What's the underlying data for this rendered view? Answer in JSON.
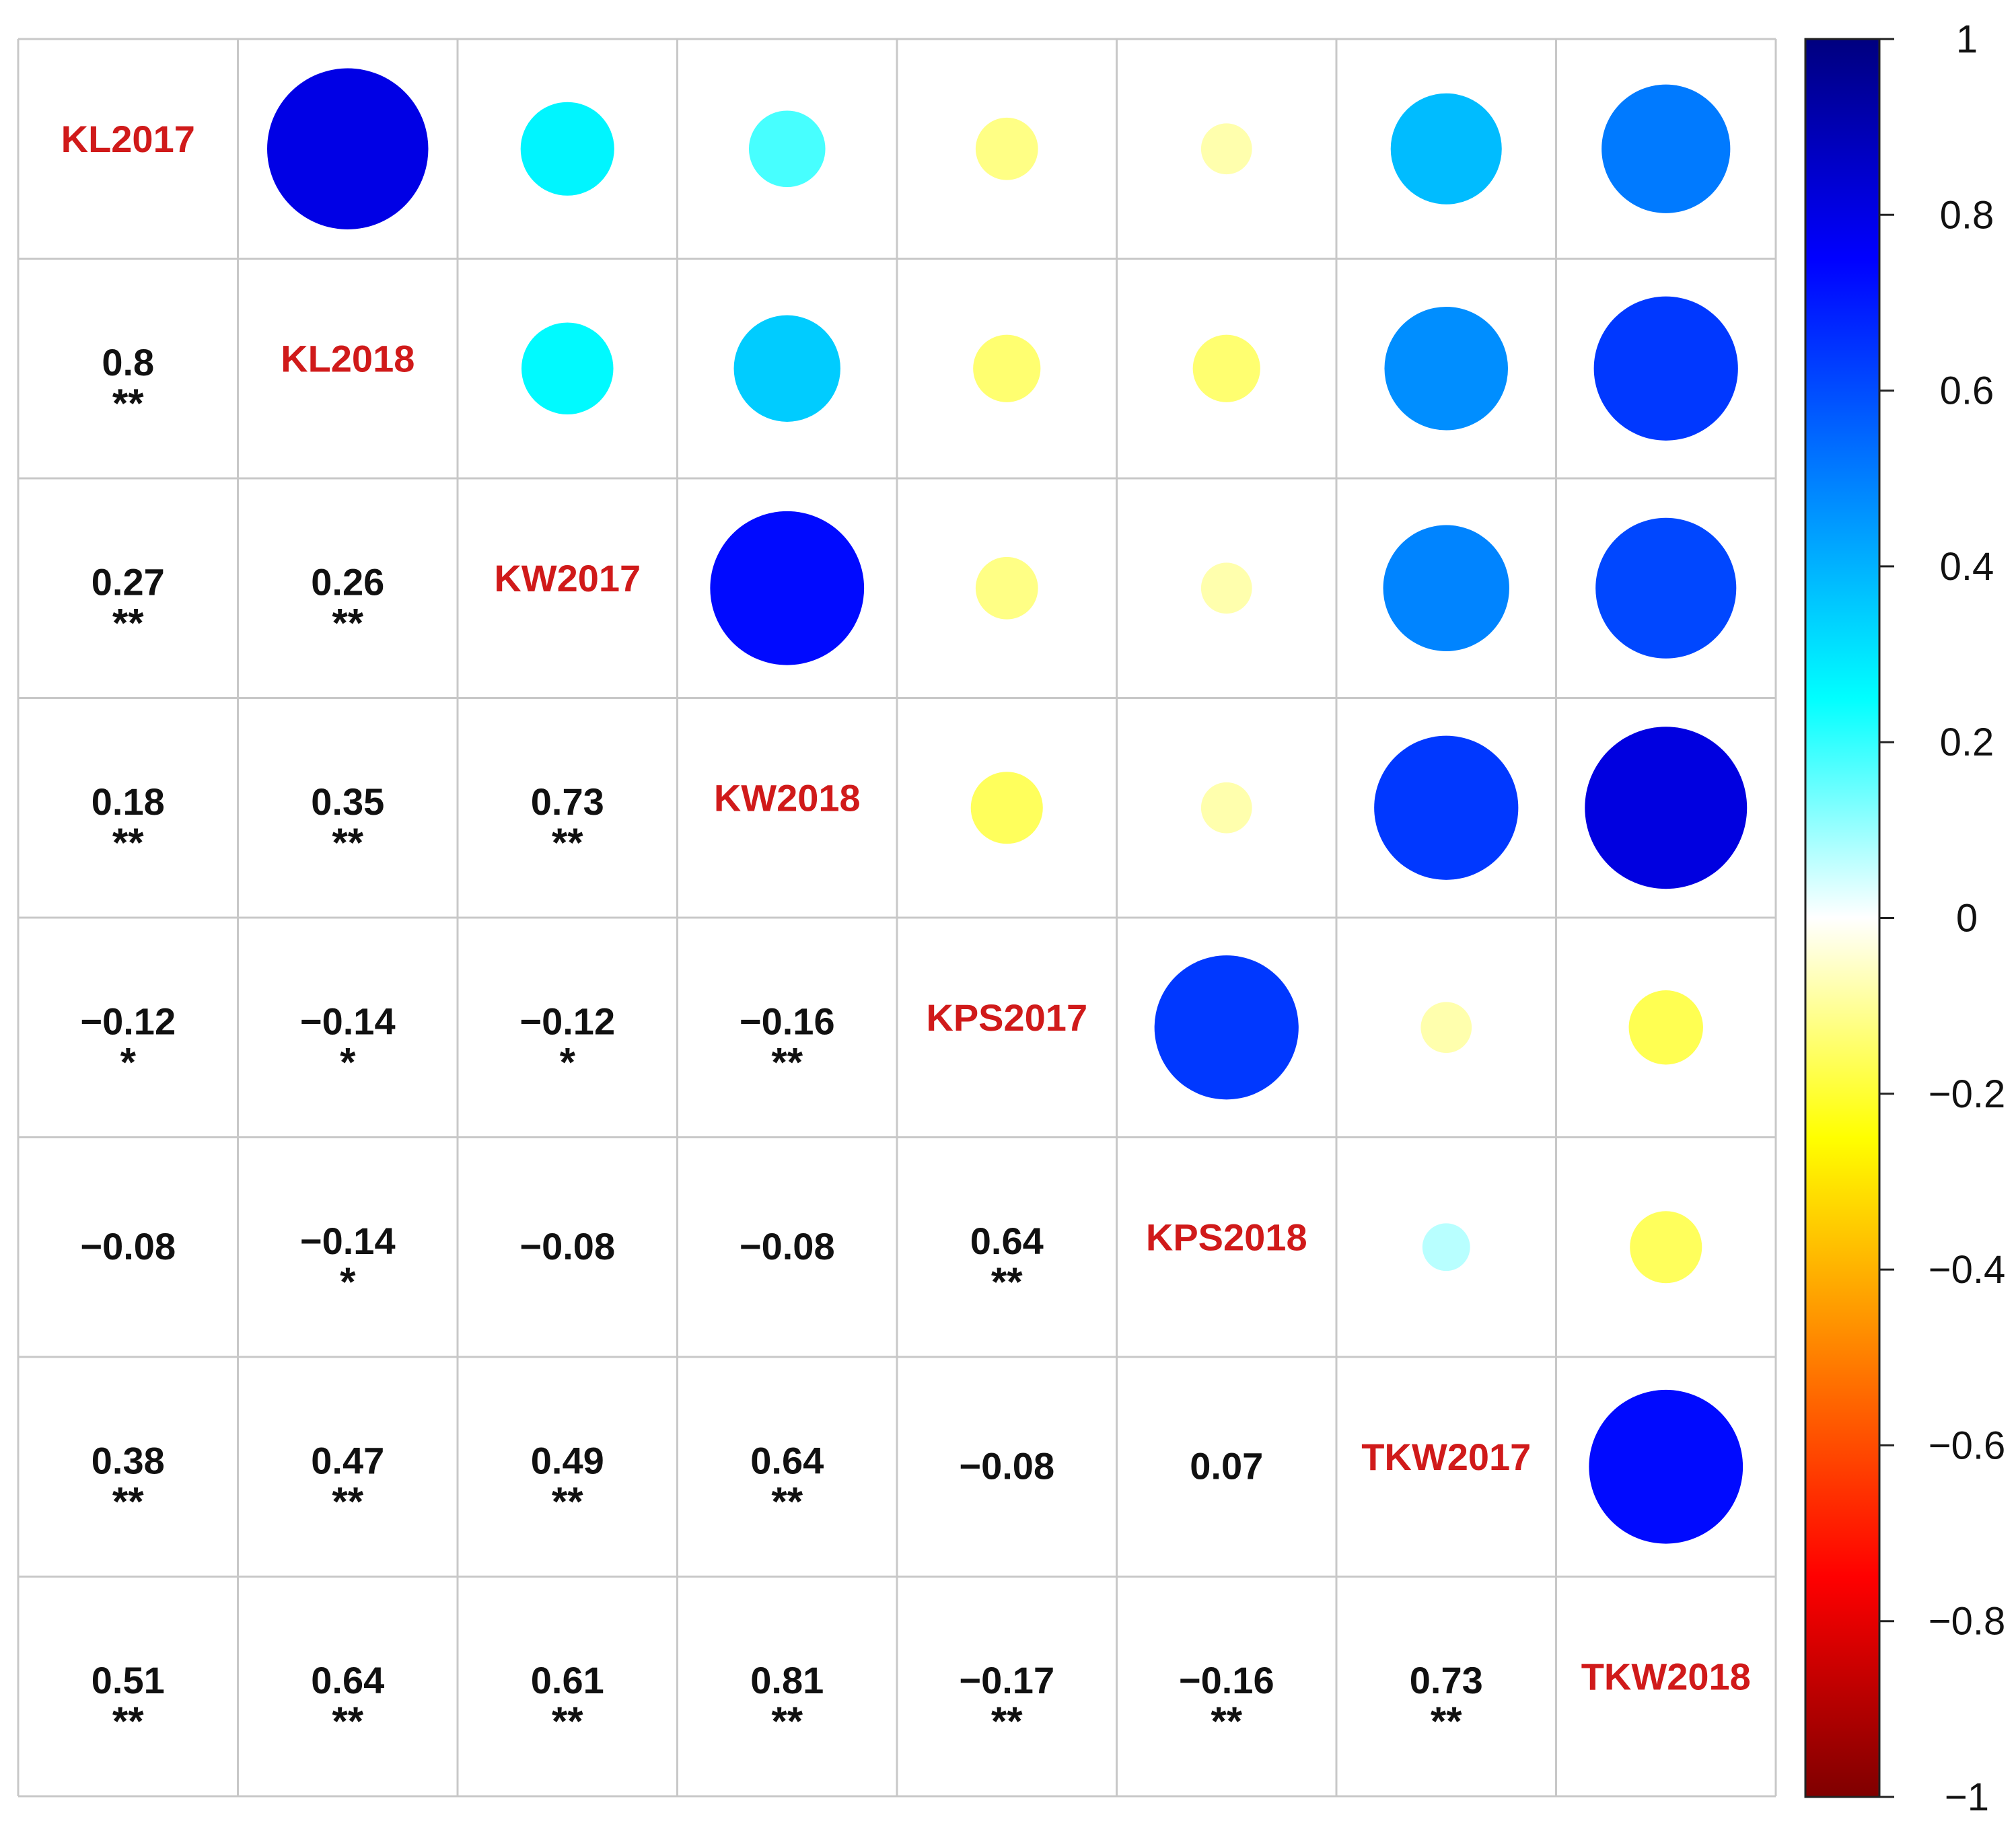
{
  "chart_data": {
    "type": "heatmap",
    "title": "",
    "variables": [
      "KL2017",
      "KL2018",
      "KW2017",
      "KW2018",
      "KPS2017",
      "KPS2018",
      "TKW2017",
      "TKW2018"
    ],
    "matrix": [
      [
        1.0,
        0.8,
        0.27,
        0.18,
        -0.12,
        -0.08,
        0.38,
        0.51
      ],
      [
        0.8,
        1.0,
        0.26,
        0.35,
        -0.14,
        -0.14,
        0.47,
        0.64
      ],
      [
        0.27,
        0.26,
        1.0,
        0.73,
        -0.12,
        -0.08,
        0.49,
        0.61
      ],
      [
        0.18,
        0.35,
        0.73,
        1.0,
        -0.16,
        -0.08,
        0.64,
        0.81
      ],
      [
        -0.12,
        -0.14,
        -0.12,
        -0.16,
        1.0,
        0.64,
        -0.08,
        -0.17
      ],
      [
        -0.08,
        -0.14,
        -0.08,
        -0.08,
        0.64,
        1.0,
        0.07,
        -0.16
      ],
      [
        0.38,
        0.47,
        0.49,
        0.64,
        -0.08,
        0.07,
        1.0,
        0.73
      ],
      [
        0.51,
        0.64,
        0.61,
        0.81,
        -0.17,
        -0.16,
        0.73,
        1.0
      ]
    ],
    "lower_labels": [
      {
        "row": 1,
        "col": 0,
        "text": "0.8",
        "stars": "**"
      },
      {
        "row": 2,
        "col": 0,
        "text": "0.27",
        "stars": "**"
      },
      {
        "row": 2,
        "col": 1,
        "text": "0.26",
        "stars": "**"
      },
      {
        "row": 3,
        "col": 0,
        "text": "0.18",
        "stars": "**"
      },
      {
        "row": 3,
        "col": 1,
        "text": "0.35",
        "stars": "**"
      },
      {
        "row": 3,
        "col": 2,
        "text": "0.73",
        "stars": "**"
      },
      {
        "row": 4,
        "col": 0,
        "text": "−0.12",
        "stars": "*"
      },
      {
        "row": 4,
        "col": 1,
        "text": "−0.14",
        "stars": "*"
      },
      {
        "row": 4,
        "col": 2,
        "text": "−0.12",
        "stars": "*"
      },
      {
        "row": 4,
        "col": 3,
        "text": "−0.16",
        "stars": "**"
      },
      {
        "row": 5,
        "col": 0,
        "text": "−0.08",
        "stars": ""
      },
      {
        "row": 5,
        "col": 1,
        "text": "−0.14",
        "stars": "*"
      },
      {
        "row": 5,
        "col": 2,
        "text": "−0.08",
        "stars": ""
      },
      {
        "row": 5,
        "col": 3,
        "text": "−0.08",
        "stars": ""
      },
      {
        "row": 5,
        "col": 4,
        "text": "0.64",
        "stars": "**"
      },
      {
        "row": 6,
        "col": 0,
        "text": "0.38",
        "stars": "**"
      },
      {
        "row": 6,
        "col": 1,
        "text": "0.47",
        "stars": "**"
      },
      {
        "row": 6,
        "col": 2,
        "text": "0.49",
        "stars": "**"
      },
      {
        "row": 6,
        "col": 3,
        "text": "0.64",
        "stars": "**"
      },
      {
        "row": 6,
        "col": 4,
        "text": "−0.08",
        "stars": ""
      },
      {
        "row": 6,
        "col": 5,
        "text": "0.07",
        "stars": ""
      },
      {
        "row": 7,
        "col": 0,
        "text": "0.51",
        "stars": "**"
      },
      {
        "row": 7,
        "col": 1,
        "text": "0.64",
        "stars": "**"
      },
      {
        "row": 7,
        "col": 2,
        "text": "0.61",
        "stars": "**"
      },
      {
        "row": 7,
        "col": 3,
        "text": "0.81",
        "stars": "**"
      },
      {
        "row": 7,
        "col": 4,
        "text": "−0.17",
        "stars": "**"
      },
      {
        "row": 7,
        "col": 5,
        "text": "−0.16",
        "stars": "**"
      },
      {
        "row": 7,
        "col": 6,
        "text": "0.73",
        "stars": "**"
      }
    ],
    "upper": "circles sized and colored by correlation",
    "lower": "coefficient values with significance stars",
    "colorbar": {
      "range": [
        -1,
        1
      ],
      "ticks": [
        "1",
        "0.8",
        "0.6",
        "0.4",
        "0.2",
        "0",
        "−0.2",
        "−0.4",
        "−0.6",
        "−0.8",
        "−1"
      ],
      "colors": [
        "#00007F",
        "#0000FF",
        "#007FFF",
        "#00FFFF",
        "#FFFFFF",
        "#FFFF00",
        "#FF7F00",
        "#FF0000",
        "#7F0000"
      ]
    },
    "grid": true
  },
  "colors": {
    "label": "#D01A1A",
    "value_text": "#111111",
    "grid": "#C8C8C8"
  }
}
